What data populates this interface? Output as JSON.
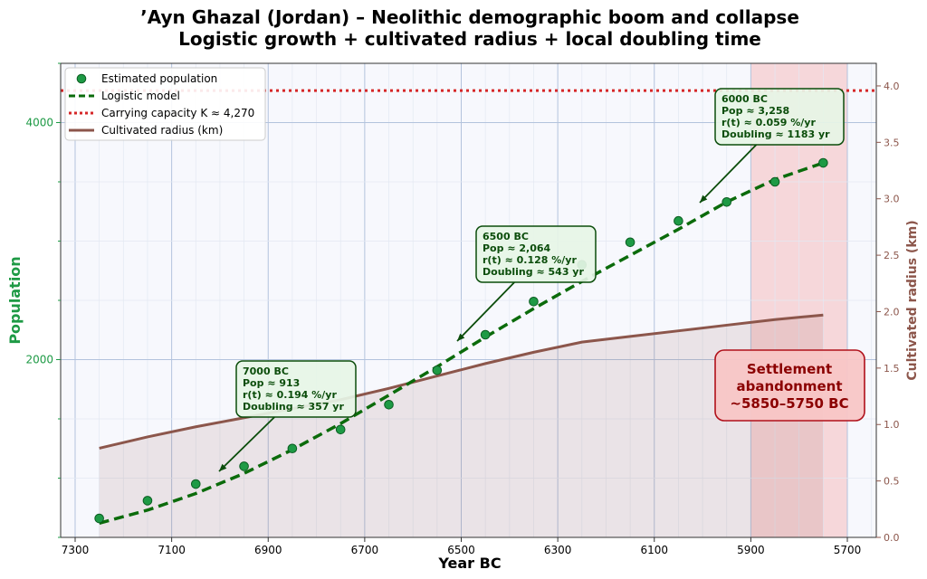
{
  "chart_data": {
    "type": "line",
    "title": "’Ayn Ghazal (Jordan) – Neolithic demographic boom and collapse",
    "subtitle": "Logistic growth + cultivated radius + local doubling time",
    "xlabel": "Year BC",
    "ylabel": "Population",
    "y2label": "Cultivated radius (km)",
    "xlim": [
      7330,
      5640
    ],
    "ylim": [
      500,
      4500
    ],
    "y2lim": [
      0,
      4.2
    ],
    "x_reversed": true,
    "x_ticks": [
      7300,
      7100,
      6900,
      6700,
      6500,
      6300,
      6100,
      5900,
      5700
    ],
    "y_ticks": [
      2000,
      4000
    ],
    "y2_ticks": [
      0.0,
      0.5,
      1.0,
      1.5,
      2.0,
      2.5,
      3.0,
      3.5,
      4.0
    ],
    "grid": true,
    "legend_position": "top-left",
    "legend": [
      {
        "label": "Estimated population",
        "kind": "marker",
        "color": "#1e9a45"
      },
      {
        "label": "Logistic model",
        "kind": "dashed",
        "color": "#0b6b0b"
      },
      {
        "label": "Carrying capacity K ≈ 4,270",
        "kind": "dotted",
        "color": "#d62728"
      },
      {
        "label": "Cultivated radius (km)",
        "kind": "solid",
        "color": "#8c564b"
      }
    ],
    "carrying_capacity": 4270,
    "series": [
      {
        "name": "Estimated population",
        "x": [
          7250,
          7150,
          7050,
          6950,
          6850,
          6750,
          6650,
          6550,
          6450,
          6350,
          6250,
          6150,
          6050,
          5950,
          5850,
          5750
        ],
        "values": [
          660,
          810,
          950,
          1100,
          1250,
          1410,
          1620,
          1910,
          2210,
          2490,
          2800,
          2990,
          3170,
          3330,
          3500,
          3660
        ]
      },
      {
        "name": "Logistic model",
        "x": [
          7250,
          7150,
          7050,
          6950,
          6850,
          6750,
          6650,
          6550,
          6450,
          6350,
          6250,
          6150,
          6050,
          5950,
          5850,
          5750
        ],
        "values": [
          620,
          730,
          870,
          1040,
          1240,
          1460,
          1700,
          1940,
          2190,
          2430,
          2660,
          2880,
          3100,
          3330,
          3520,
          3660
        ]
      },
      {
        "name": "Cultivated radius (km)",
        "x": [
          7250,
          7150,
          7050,
          6950,
          6850,
          6750,
          6650,
          6550,
          6450,
          6350,
          6250,
          6150,
          6050,
          5950,
          5850,
          5750
        ],
        "values": [
          0.79,
          0.89,
          0.98,
          1.06,
          1.14,
          1.22,
          1.32,
          1.43,
          1.54,
          1.64,
          1.73,
          1.78,
          1.83,
          1.88,
          1.93,
          1.97
        ]
      }
    ],
    "shaded_region": {
      "x_from": 5900,
      "x_to": 5700,
      "color": "#f4a6a6"
    },
    "annotations": [
      {
        "lines": [
          "7000 BC",
          "Pop ≈ 913",
          "r(t) ≈ 0.194 %/yr",
          "Doubling ≈ 357 yr"
        ],
        "target_x": 7000,
        "target_y": 913
      },
      {
        "lines": [
          "6500 BC",
          "Pop ≈ 2,064",
          "r(t) ≈ 0.128 %/yr",
          "Doubling ≈ 543 yr"
        ],
        "target_x": 6500,
        "target_y": 2064
      },
      {
        "lines": [
          "6000 BC",
          "Pop ≈ 3,258",
          "r(t) ≈ 0.059 %/yr",
          "Doubling ≈ 1183 yr"
        ],
        "target_x": 6000,
        "target_y": 3258
      }
    ],
    "abandonment_note": [
      "Settlement",
      "abandonment",
      "~5850–5750 BC"
    ]
  },
  "colors": {
    "population_axis": "#1e9a45",
    "radius_axis": "#8c564b",
    "annotation_text": "#0b4d0b",
    "abandonment_text": "#8b0000"
  }
}
